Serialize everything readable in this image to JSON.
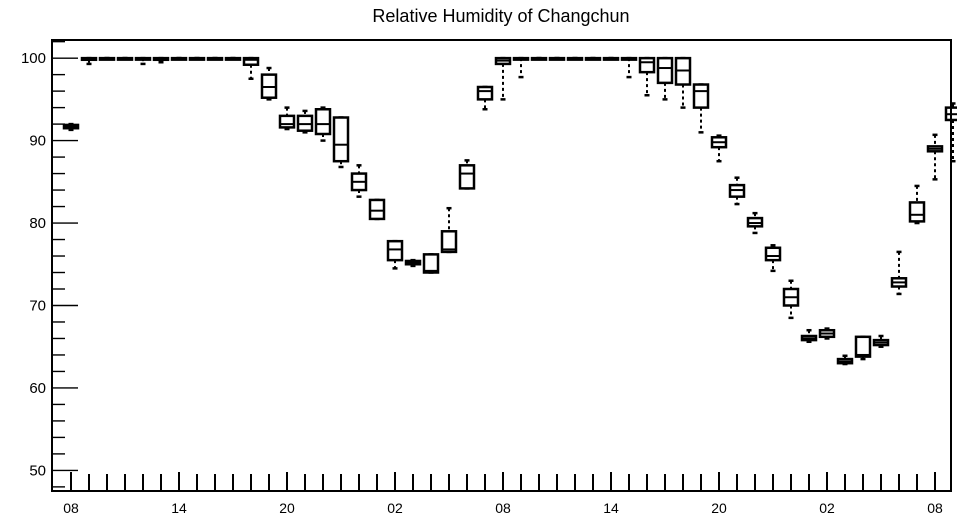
{
  "chart_data": {
    "type": "box",
    "title": "Relative Humidity of Changchun",
    "xlabel": "",
    "ylabel": "",
    "ylim": [
      47.5,
      102.2
    ],
    "yticks": [
      50,
      60,
      70,
      80,
      90,
      100
    ],
    "x_tick_labels": [
      "08",
      "14",
      "20",
      "02",
      "08",
      "14",
      "20",
      "02",
      "08"
    ],
    "hours_per_label": 6,
    "grid": false,
    "boxes": [
      {
        "hour": 0,
        "q1": 91.5,
        "median": 91.7,
        "q3": 91.9,
        "whisker_low": 91.3,
        "whisker_high": 92.0
      },
      {
        "hour": 1,
        "q1": 99.8,
        "median": 100,
        "q3": 100,
        "whisker_low": 99.3,
        "whisker_high": 100
      },
      {
        "hour": 2,
        "q1": 100,
        "median": 100,
        "q3": 100,
        "whisker_low": 100,
        "whisker_high": 100
      },
      {
        "hour": 3,
        "q1": 100,
        "median": 100,
        "q3": 100,
        "whisker_low": 100,
        "whisker_high": 100
      },
      {
        "hour": 4,
        "q1": 100,
        "median": 100,
        "q3": 100,
        "whisker_low": 99.3,
        "whisker_high": 100
      },
      {
        "hour": 5,
        "q1": 99.8,
        "median": 100,
        "q3": 100,
        "whisker_low": 99.5,
        "whisker_high": 100
      },
      {
        "hour": 6,
        "q1": 100,
        "median": 100,
        "q3": 100,
        "whisker_low": 100,
        "whisker_high": 100
      },
      {
        "hour": 7,
        "q1": 100,
        "median": 100,
        "q3": 100,
        "whisker_low": 100,
        "whisker_high": 100
      },
      {
        "hour": 8,
        "q1": 100,
        "median": 100,
        "q3": 100,
        "whisker_low": 100,
        "whisker_high": 100
      },
      {
        "hour": 9,
        "q1": 100,
        "median": 100,
        "q3": 100,
        "whisker_low": 100,
        "whisker_high": 100
      },
      {
        "hour": 10,
        "q1": 99.2,
        "median": 99.8,
        "q3": 100,
        "whisker_low": 97.5,
        "whisker_high": 100
      },
      {
        "hour": 11,
        "q1": 95.2,
        "median": 96.5,
        "q3": 98.0,
        "whisker_low": 95.0,
        "whisker_high": 98.8
      },
      {
        "hour": 12,
        "q1": 91.6,
        "median": 92.0,
        "q3": 93.0,
        "whisker_low": 91.4,
        "whisker_high": 94.0
      },
      {
        "hour": 13,
        "q1": 91.2,
        "median": 92.0,
        "q3": 93.0,
        "whisker_low": 91.0,
        "whisker_high": 93.6
      },
      {
        "hour": 14,
        "q1": 90.8,
        "median": 92.0,
        "q3": 93.8,
        "whisker_low": 90.0,
        "whisker_high": 94.0
      },
      {
        "hour": 15,
        "q1": 87.5,
        "median": 89.5,
        "q3": 92.8,
        "whisker_low": 86.8,
        "whisker_high": 92.8
      },
      {
        "hour": 16,
        "q1": 84.0,
        "median": 85.0,
        "q3": 86.0,
        "whisker_low": 83.2,
        "whisker_high": 87.0
      },
      {
        "hour": 17,
        "q1": 80.5,
        "median": 81.5,
        "q3": 82.8,
        "whisker_low": 80.5,
        "whisker_high": 82.8
      },
      {
        "hour": 18,
        "q1": 75.5,
        "median": 76.8,
        "q3": 77.8,
        "whisker_low": 74.5,
        "whisker_high": 77.8
      },
      {
        "hour": 19,
        "q1": 75.0,
        "median": 75.2,
        "q3": 75.4,
        "whisker_low": 74.8,
        "whisker_high": 75.5
      },
      {
        "hour": 20,
        "q1": 74.0,
        "median": 74.2,
        "q3": 76.2,
        "whisker_low": 74.0,
        "whisker_high": 76.2
      },
      {
        "hour": 21,
        "q1": 76.5,
        "median": 76.8,
        "q3": 79.0,
        "whisker_low": 76.5,
        "whisker_high": 81.8
      },
      {
        "hour": 22,
        "q1": 84.2,
        "median": 86.0,
        "q3": 87.0,
        "whisker_low": 84.2,
        "whisker_high": 87.6
      },
      {
        "hour": 23,
        "q1": 95.0,
        "median": 96.0,
        "q3": 96.5,
        "whisker_low": 93.8,
        "whisker_high": 96.5
      },
      {
        "hour": 24,
        "q1": 99.3,
        "median": 99.7,
        "q3": 100,
        "whisker_low": 95.0,
        "whisker_high": 100
      },
      {
        "hour": 25,
        "q1": 100,
        "median": 100,
        "q3": 100,
        "whisker_low": 97.7,
        "whisker_high": 100
      },
      {
        "hour": 26,
        "q1": 100,
        "median": 100,
        "q3": 100,
        "whisker_low": 100,
        "whisker_high": 100
      },
      {
        "hour": 27,
        "q1": 100,
        "median": 100,
        "q3": 100,
        "whisker_low": 100,
        "whisker_high": 100
      },
      {
        "hour": 28,
        "q1": 100,
        "median": 100,
        "q3": 100,
        "whisker_low": 100,
        "whisker_high": 100
      },
      {
        "hour": 29,
        "q1": 100,
        "median": 100,
        "q3": 100,
        "whisker_low": 100,
        "whisker_high": 100
      },
      {
        "hour": 30,
        "q1": 100,
        "median": 100,
        "q3": 100,
        "whisker_low": 100,
        "whisker_high": 100
      },
      {
        "hour": 31,
        "q1": 100,
        "median": 100,
        "q3": 100,
        "whisker_low": 97.7,
        "whisker_high": 100
      },
      {
        "hour": 32,
        "q1": 98.3,
        "median": 99.5,
        "q3": 100,
        "whisker_low": 95.5,
        "whisker_high": 100
      },
      {
        "hour": 33,
        "q1": 97.0,
        "median": 98.8,
        "q3": 100,
        "whisker_low": 95.0,
        "whisker_high": 100
      },
      {
        "hour": 34,
        "q1": 96.8,
        "median": 98.5,
        "q3": 100,
        "whisker_low": 94.0,
        "whisker_high": 100
      },
      {
        "hour": 35,
        "q1": 94.0,
        "median": 96.0,
        "q3": 96.8,
        "whisker_low": 91.0,
        "whisker_high": 96.8
      },
      {
        "hour": 36,
        "q1": 89.2,
        "median": 89.8,
        "q3": 90.4,
        "whisker_low": 87.5,
        "whisker_high": 90.6
      },
      {
        "hour": 37,
        "q1": 83.2,
        "median": 84.0,
        "q3": 84.6,
        "whisker_low": 82.3,
        "whisker_high": 85.5
      },
      {
        "hour": 38,
        "q1": 79.6,
        "median": 80.0,
        "q3": 80.6,
        "whisker_low": 78.8,
        "whisker_high": 81.2
      },
      {
        "hour": 39,
        "q1": 75.5,
        "median": 76.0,
        "q3": 77.0,
        "whisker_low": 74.2,
        "whisker_high": 77.3
      },
      {
        "hour": 40,
        "q1": 70.0,
        "median": 71.0,
        "q3": 72.0,
        "whisker_low": 68.5,
        "whisker_high": 73.0
      },
      {
        "hour": 41,
        "q1": 65.8,
        "median": 66.0,
        "q3": 66.3,
        "whisker_low": 65.6,
        "whisker_high": 67.0
      },
      {
        "hour": 42,
        "q1": 66.2,
        "median": 66.6,
        "q3": 67.0,
        "whisker_low": 66.0,
        "whisker_high": 67.2
      },
      {
        "hour": 43,
        "q1": 63.0,
        "median": 63.2,
        "q3": 63.5,
        "whisker_low": 62.9,
        "whisker_high": 63.9
      },
      {
        "hour": 44,
        "q1": 63.8,
        "median": 64.0,
        "q3": 66.2,
        "whisker_low": 63.5,
        "whisker_high": 66.2
      },
      {
        "hour": 45,
        "q1": 65.2,
        "median": 65.5,
        "q3": 65.8,
        "whisker_low": 65.0,
        "whisker_high": 66.3
      },
      {
        "hour": 46,
        "q1": 72.3,
        "median": 72.8,
        "q3": 73.3,
        "whisker_low": 71.4,
        "whisker_high": 76.5
      },
      {
        "hour": 47,
        "q1": 80.2,
        "median": 81.0,
        "q3": 82.5,
        "whisker_low": 80.0,
        "whisker_high": 84.5
      },
      {
        "hour": 48,
        "q1": 88.7,
        "median": 89.0,
        "q3": 89.3,
        "whisker_low": 85.3,
        "whisker_high": 90.7
      },
      {
        "hour": 49,
        "q1": 92.5,
        "median": 93.2,
        "q3": 94.0,
        "whisker_low": 87.5,
        "whisker_high": 94.5
      }
    ]
  }
}
